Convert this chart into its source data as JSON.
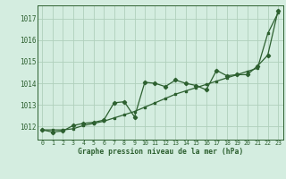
{
  "background_color": "#d4ede0",
  "grid_color": "#b0d0bc",
  "line_color": "#2d6030",
  "title": "Graphe pression niveau de la mer (hPa)",
  "ylabel_ticks": [
    1012,
    1013,
    1014,
    1015,
    1016,
    1017
  ],
  "xlim": [
    -0.5,
    23.5
  ],
  "ylim": [
    1011.4,
    1017.6
  ],
  "series1_x": [
    0,
    1,
    2,
    3,
    4,
    5,
    6,
    7,
    8,
    9,
    10,
    11,
    12,
    13,
    14,
    15,
    16,
    17,
    18,
    19,
    20,
    21,
    22,
    23
  ],
  "series1_y": [
    1011.85,
    1011.85,
    1011.85,
    1011.9,
    1012.05,
    1012.15,
    1012.25,
    1012.4,
    1012.55,
    1012.7,
    1012.9,
    1013.1,
    1013.3,
    1013.5,
    1013.65,
    1013.8,
    1013.95,
    1014.1,
    1014.25,
    1014.4,
    1014.55,
    1014.7,
    1016.3,
    1017.25
  ],
  "series2_x": [
    0,
    1,
    2,
    3,
    4,
    5,
    6,
    7,
    8,
    9,
    10,
    11,
    12,
    13,
    14,
    15,
    16,
    17,
    18,
    19,
    20,
    21,
    22,
    23
  ],
  "series2_y": [
    1011.85,
    1011.75,
    1011.8,
    1012.05,
    1012.15,
    1012.2,
    1012.3,
    1013.1,
    1013.15,
    1012.45,
    1014.05,
    1014.0,
    1013.85,
    1014.15,
    1014.0,
    1013.9,
    1013.7,
    1014.6,
    1014.35,
    1014.4,
    1014.4,
    1014.8,
    1015.3,
    1017.35
  ]
}
